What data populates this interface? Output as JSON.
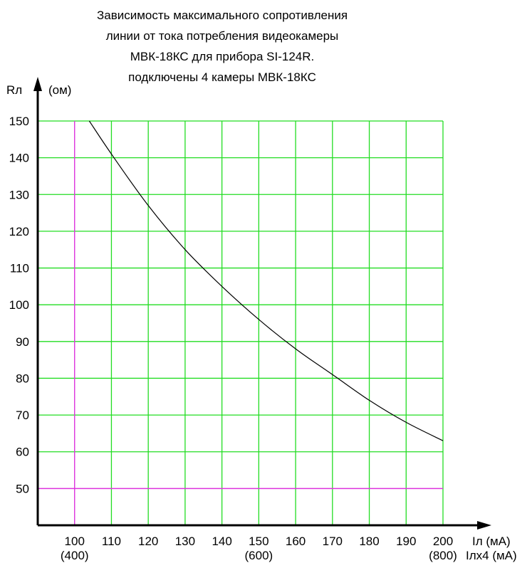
{
  "chart_data": {
    "type": "line",
    "title": [
      "Зависимость максимального сопротивления",
      "линии от тока потребления видеокамеры",
      "МВК-18КС для прибора SI-124R.",
      "подключены 4 камеры МВК-18КС"
    ],
    "ylabel": "Rл",
    "yunit": "(ом)",
    "xlabel": "Iл (мА)",
    "xlabel2": "Iлx4 (мА)",
    "xlim": [
      90,
      200
    ],
    "ylim": [
      40,
      150
    ],
    "xticks": [
      100,
      110,
      120,
      130,
      140,
      150,
      160,
      170,
      180,
      190,
      200
    ],
    "yticks": [
      50,
      60,
      70,
      80,
      90,
      100,
      110,
      120,
      130,
      140,
      150
    ],
    "xticks_secondary": [
      {
        "x": 100,
        "label": "(400)"
      },
      {
        "x": 150,
        "label": "(600)"
      },
      {
        "x": 200,
        "label": "(800)"
      }
    ],
    "grid": true,
    "colors": {
      "grid": "#22dd22",
      "reference_lines": "#dd33dd",
      "curve": "#000000",
      "axes": "#000000"
    },
    "reference_lines": {
      "x": 100,
      "y": 50
    },
    "series": [
      {
        "x": [
          104,
          110,
          120,
          130,
          140,
          150,
          160,
          170,
          180,
          190,
          200
        ],
        "y": [
          150,
          141,
          127,
          115,
          105,
          96,
          88,
          81,
          74,
          68,
          63
        ]
      }
    ]
  }
}
